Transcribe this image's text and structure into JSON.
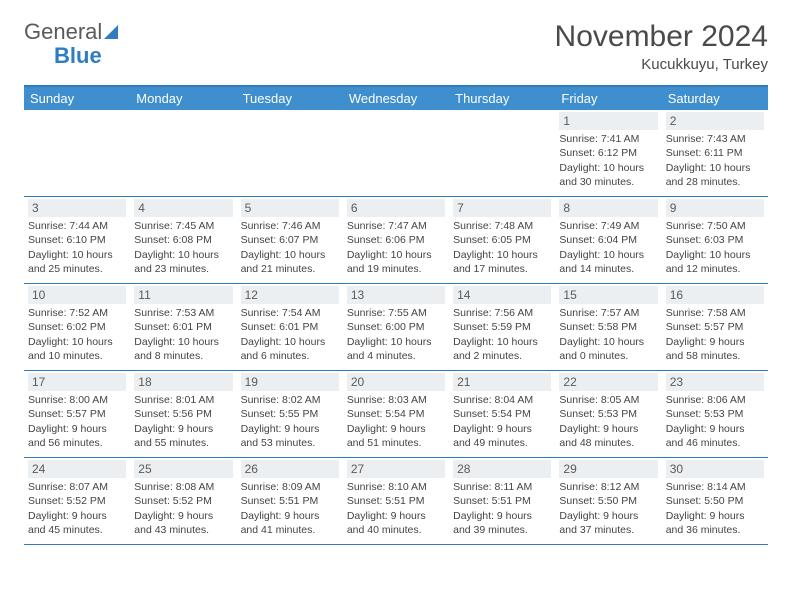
{
  "brand": {
    "word1": "General",
    "word2": "Blue"
  },
  "title": "November 2024",
  "location": "Kucukkuyu, Turkey",
  "colors": {
    "header_bg": "#3f8fcf",
    "border": "#2f7cc0",
    "daynum_bg": "#eceff2",
    "text": "#444444"
  },
  "weekdays": [
    "Sunday",
    "Monday",
    "Tuesday",
    "Wednesday",
    "Thursday",
    "Friday",
    "Saturday"
  ],
  "weeks": [
    [
      {
        "n": "",
        "sr": "",
        "ss": "",
        "dl": ""
      },
      {
        "n": "",
        "sr": "",
        "ss": "",
        "dl": ""
      },
      {
        "n": "",
        "sr": "",
        "ss": "",
        "dl": ""
      },
      {
        "n": "",
        "sr": "",
        "ss": "",
        "dl": ""
      },
      {
        "n": "",
        "sr": "",
        "ss": "",
        "dl": ""
      },
      {
        "n": "1",
        "sr": "Sunrise: 7:41 AM",
        "ss": "Sunset: 6:12 PM",
        "dl": "Daylight: 10 hours and 30 minutes."
      },
      {
        "n": "2",
        "sr": "Sunrise: 7:43 AM",
        "ss": "Sunset: 6:11 PM",
        "dl": "Daylight: 10 hours and 28 minutes."
      }
    ],
    [
      {
        "n": "3",
        "sr": "Sunrise: 7:44 AM",
        "ss": "Sunset: 6:10 PM",
        "dl": "Daylight: 10 hours and 25 minutes."
      },
      {
        "n": "4",
        "sr": "Sunrise: 7:45 AM",
        "ss": "Sunset: 6:08 PM",
        "dl": "Daylight: 10 hours and 23 minutes."
      },
      {
        "n": "5",
        "sr": "Sunrise: 7:46 AM",
        "ss": "Sunset: 6:07 PM",
        "dl": "Daylight: 10 hours and 21 minutes."
      },
      {
        "n": "6",
        "sr": "Sunrise: 7:47 AM",
        "ss": "Sunset: 6:06 PM",
        "dl": "Daylight: 10 hours and 19 minutes."
      },
      {
        "n": "7",
        "sr": "Sunrise: 7:48 AM",
        "ss": "Sunset: 6:05 PM",
        "dl": "Daylight: 10 hours and 17 minutes."
      },
      {
        "n": "8",
        "sr": "Sunrise: 7:49 AM",
        "ss": "Sunset: 6:04 PM",
        "dl": "Daylight: 10 hours and 14 minutes."
      },
      {
        "n": "9",
        "sr": "Sunrise: 7:50 AM",
        "ss": "Sunset: 6:03 PM",
        "dl": "Daylight: 10 hours and 12 minutes."
      }
    ],
    [
      {
        "n": "10",
        "sr": "Sunrise: 7:52 AM",
        "ss": "Sunset: 6:02 PM",
        "dl": "Daylight: 10 hours and 10 minutes."
      },
      {
        "n": "11",
        "sr": "Sunrise: 7:53 AM",
        "ss": "Sunset: 6:01 PM",
        "dl": "Daylight: 10 hours and 8 minutes."
      },
      {
        "n": "12",
        "sr": "Sunrise: 7:54 AM",
        "ss": "Sunset: 6:01 PM",
        "dl": "Daylight: 10 hours and 6 minutes."
      },
      {
        "n": "13",
        "sr": "Sunrise: 7:55 AM",
        "ss": "Sunset: 6:00 PM",
        "dl": "Daylight: 10 hours and 4 minutes."
      },
      {
        "n": "14",
        "sr": "Sunrise: 7:56 AM",
        "ss": "Sunset: 5:59 PM",
        "dl": "Daylight: 10 hours and 2 minutes."
      },
      {
        "n": "15",
        "sr": "Sunrise: 7:57 AM",
        "ss": "Sunset: 5:58 PM",
        "dl": "Daylight: 10 hours and 0 minutes."
      },
      {
        "n": "16",
        "sr": "Sunrise: 7:58 AM",
        "ss": "Sunset: 5:57 PM",
        "dl": "Daylight: 9 hours and 58 minutes."
      }
    ],
    [
      {
        "n": "17",
        "sr": "Sunrise: 8:00 AM",
        "ss": "Sunset: 5:57 PM",
        "dl": "Daylight: 9 hours and 56 minutes."
      },
      {
        "n": "18",
        "sr": "Sunrise: 8:01 AM",
        "ss": "Sunset: 5:56 PM",
        "dl": "Daylight: 9 hours and 55 minutes."
      },
      {
        "n": "19",
        "sr": "Sunrise: 8:02 AM",
        "ss": "Sunset: 5:55 PM",
        "dl": "Daylight: 9 hours and 53 minutes."
      },
      {
        "n": "20",
        "sr": "Sunrise: 8:03 AM",
        "ss": "Sunset: 5:54 PM",
        "dl": "Daylight: 9 hours and 51 minutes."
      },
      {
        "n": "21",
        "sr": "Sunrise: 8:04 AM",
        "ss": "Sunset: 5:54 PM",
        "dl": "Daylight: 9 hours and 49 minutes."
      },
      {
        "n": "22",
        "sr": "Sunrise: 8:05 AM",
        "ss": "Sunset: 5:53 PM",
        "dl": "Daylight: 9 hours and 48 minutes."
      },
      {
        "n": "23",
        "sr": "Sunrise: 8:06 AM",
        "ss": "Sunset: 5:53 PM",
        "dl": "Daylight: 9 hours and 46 minutes."
      }
    ],
    [
      {
        "n": "24",
        "sr": "Sunrise: 8:07 AM",
        "ss": "Sunset: 5:52 PM",
        "dl": "Daylight: 9 hours and 45 minutes."
      },
      {
        "n": "25",
        "sr": "Sunrise: 8:08 AM",
        "ss": "Sunset: 5:52 PM",
        "dl": "Daylight: 9 hours and 43 minutes."
      },
      {
        "n": "26",
        "sr": "Sunrise: 8:09 AM",
        "ss": "Sunset: 5:51 PM",
        "dl": "Daylight: 9 hours and 41 minutes."
      },
      {
        "n": "27",
        "sr": "Sunrise: 8:10 AM",
        "ss": "Sunset: 5:51 PM",
        "dl": "Daylight: 9 hours and 40 minutes."
      },
      {
        "n": "28",
        "sr": "Sunrise: 8:11 AM",
        "ss": "Sunset: 5:51 PM",
        "dl": "Daylight: 9 hours and 39 minutes."
      },
      {
        "n": "29",
        "sr": "Sunrise: 8:12 AM",
        "ss": "Sunset: 5:50 PM",
        "dl": "Daylight: 9 hours and 37 minutes."
      },
      {
        "n": "30",
        "sr": "Sunrise: 8:14 AM",
        "ss": "Sunset: 5:50 PM",
        "dl": "Daylight: 9 hours and 36 minutes."
      }
    ]
  ]
}
